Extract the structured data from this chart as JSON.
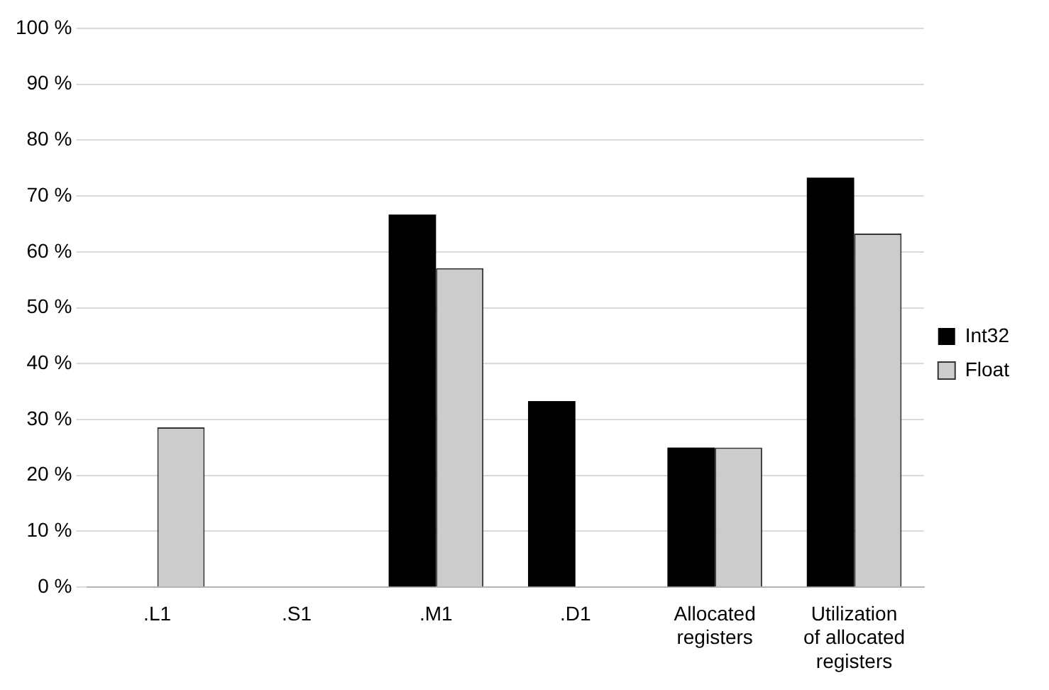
{
  "chart_data": {
    "type": "bar",
    "categories": [
      ".L1",
      ".S1",
      ".M1",
      ".D1",
      "Allocated registers",
      "Utilization of allocated registers"
    ],
    "series": [
      {
        "name": "Int32",
        "color": "#000000",
        "values": [
          0,
          0,
          66.7,
          33.3,
          25,
          73.3
        ]
      },
      {
        "name": "Float",
        "color": "#cccccc",
        "values": [
          28.6,
          0,
          57.1,
          0,
          25,
          63.3
        ]
      }
    ],
    "ylim": [
      0,
      100
    ],
    "yticks": [
      {
        "value": 0,
        "label": "0 %"
      },
      {
        "value": 10,
        "label": "10 %"
      },
      {
        "value": 20,
        "label": "20 %"
      },
      {
        "value": 30,
        "label": "30 %"
      },
      {
        "value": 40,
        "label": "40 %"
      },
      {
        "value": 50,
        "label": "50 %"
      },
      {
        "value": 60,
        "label": "60 %"
      },
      {
        "value": 70,
        "label": "70 %"
      },
      {
        "value": 80,
        "label": "80 %"
      },
      {
        "value": 90,
        "label": "90 %"
      },
      {
        "value": 100,
        "label": "100 %"
      }
    ],
    "grid": "y",
    "legend": "right"
  }
}
